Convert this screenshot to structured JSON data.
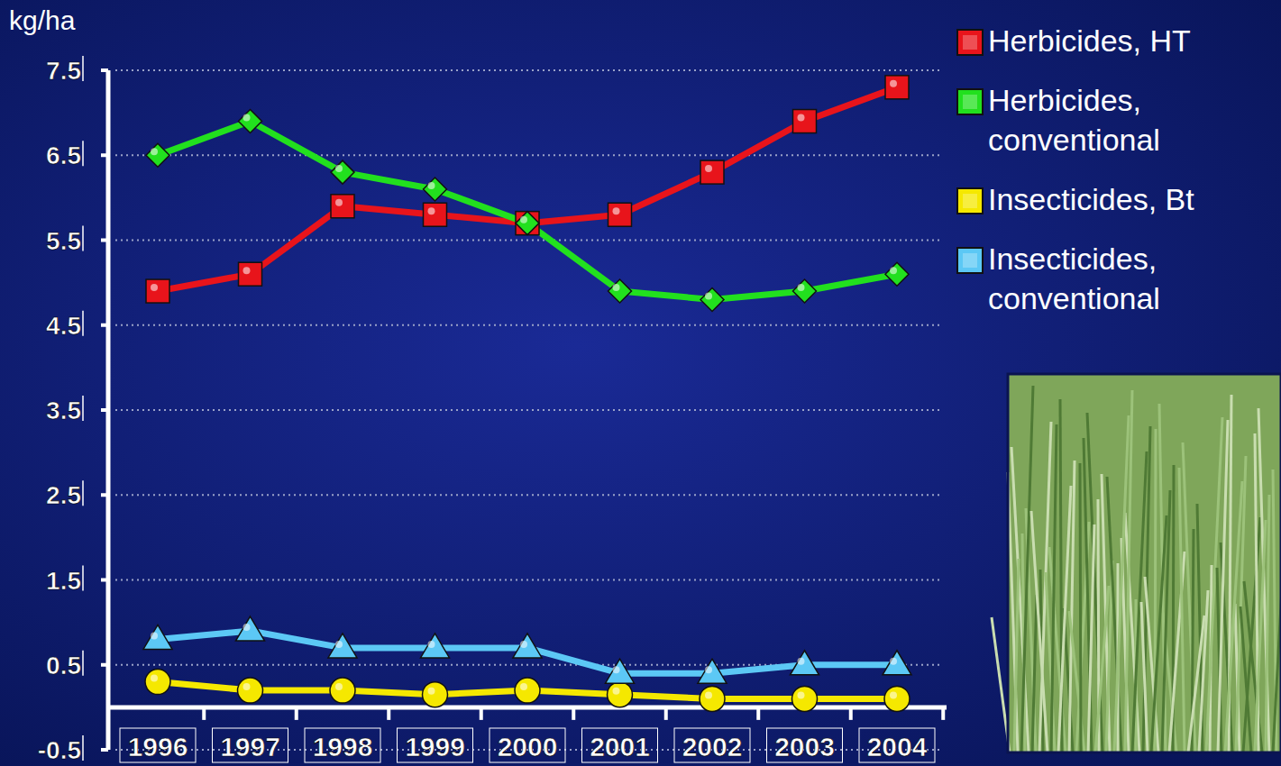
{
  "chart_data": {
    "type": "line",
    "y_label": "kg/ha",
    "categories": [
      "1996",
      "1997",
      "1998",
      "1999",
      "2000",
      "2001",
      "2002",
      "2003",
      "2004"
    ],
    "series": [
      {
        "name": "Herbicides, HT",
        "color": "#e8141b",
        "marker": "square",
        "values": [
          4.9,
          5.1,
          5.9,
          5.8,
          5.7,
          5.8,
          6.3,
          6.9,
          7.3
        ]
      },
      {
        "name": "Herbicides, conventional",
        "color": "#22e01e",
        "marker": "diamond",
        "values": [
          6.5,
          6.9,
          6.3,
          6.1,
          5.7,
          4.9,
          4.8,
          4.9,
          5.1
        ]
      },
      {
        "name": "Insecticides, Bt",
        "color": "#f5e800",
        "marker": "circle",
        "values": [
          0.3,
          0.2,
          0.2,
          0.15,
          0.2,
          0.15,
          0.1,
          0.1,
          0.1
        ]
      },
      {
        "name": "Insecticides, conventional",
        "color": "#5cc8f5",
        "marker": "triangle",
        "values": [
          0.8,
          0.9,
          0.7,
          0.7,
          0.7,
          0.4,
          0.4,
          0.5,
          0.5
        ]
      }
    ],
    "ylim": [
      -0.5,
      7.5
    ],
    "yticks": [
      -0.5,
      0.5,
      1.5,
      2.5,
      3.5,
      4.5,
      5.5,
      6.5,
      7.5
    ],
    "grid": true,
    "legend": "upper right"
  }
}
